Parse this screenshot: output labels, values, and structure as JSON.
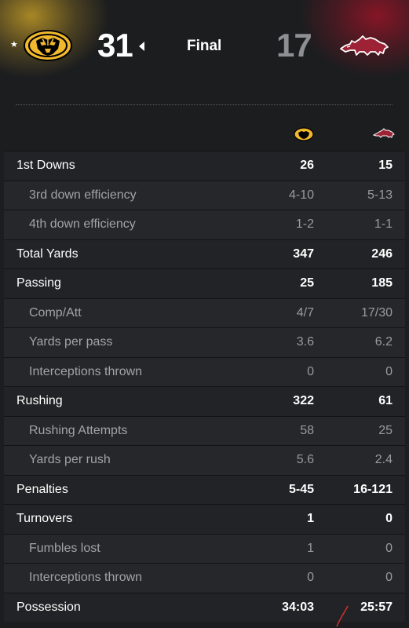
{
  "game": {
    "home_score": "31",
    "status": "Final",
    "away_score": "17",
    "possession_star": "★"
  },
  "colors": {
    "mizzou_gold": "#f1b82d",
    "arkansas_red": "#9d2235",
    "background": "#1c1d1f"
  },
  "icons": {
    "home_logo": "missouri-tiger-logo-icon",
    "away_logo": "arkansas-razorback-logo-icon",
    "winner_indicator": "caret-left-icon"
  },
  "stats": [
    {
      "label": "1st Downs",
      "home": "26",
      "away": "15",
      "kind": "main"
    },
    {
      "label": "3rd down efficiency",
      "home": "4-10",
      "away": "5-13",
      "kind": "sub"
    },
    {
      "label": "4th down efficiency",
      "home": "1-2",
      "away": "1-1",
      "kind": "sub"
    },
    {
      "label": "Total Yards",
      "home": "347",
      "away": "246",
      "kind": "main"
    },
    {
      "label": "Passing",
      "home": "25",
      "away": "185",
      "kind": "main"
    },
    {
      "label": "Comp/Att",
      "home": "4/7",
      "away": "17/30",
      "kind": "sub"
    },
    {
      "label": "Yards per pass",
      "home": "3.6",
      "away": "6.2",
      "kind": "sub"
    },
    {
      "label": "Interceptions thrown",
      "home": "0",
      "away": "0",
      "kind": "sub"
    },
    {
      "label": "Rushing",
      "home": "322",
      "away": "61",
      "kind": "main"
    },
    {
      "label": "Rushing Attempts",
      "home": "58",
      "away": "25",
      "kind": "sub"
    },
    {
      "label": "Yards per rush",
      "home": "5.6",
      "away": "2.4",
      "kind": "sub"
    },
    {
      "label": "Penalties",
      "home": "5-45",
      "away": "16-121",
      "kind": "main"
    },
    {
      "label": "Turnovers",
      "home": "1",
      "away": "0",
      "kind": "main"
    },
    {
      "label": "Fumbles lost",
      "home": "1",
      "away": "0",
      "kind": "sub"
    },
    {
      "label": "Interceptions thrown",
      "home": "0",
      "away": "0",
      "kind": "sub"
    },
    {
      "label": "Possession",
      "home": "34:03",
      "away": "25:57",
      "kind": "main"
    }
  ]
}
